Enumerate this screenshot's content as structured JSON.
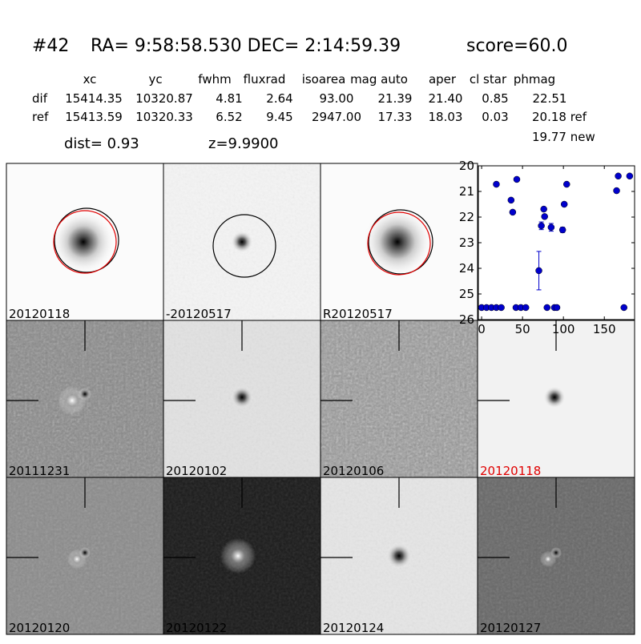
{
  "header": {
    "id": "#42",
    "coords": "RA= 9:58:58.530 DEC= 2:14:59.39",
    "score": "score=60.0"
  },
  "table": {
    "columns": [
      "xc",
      "yc",
      "fwhm",
      "fluxrad",
      "isoarea",
      "mag auto",
      "aper",
      "cl star",
      "phmag"
    ],
    "rows": [
      [
        "dif",
        "15414.35",
        "10320.87",
        "4.81",
        "2.64",
        "93.00",
        "21.39",
        "21.40",
        "0.85",
        "22.51"
      ],
      [
        "ref",
        "15413.59",
        "10320.33",
        "6.52",
        "9.45",
        "2947.00",
        "17.33",
        "18.03",
        "0.03",
        "20.18 ref"
      ]
    ],
    "extra": "19.77 new"
  },
  "dist": "dist=  0.93",
  "z": "z=9.9900",
  "stamps": [
    "20120118",
    "-20120517",
    "R20120517",
    "20111231",
    "20120102",
    "20120106",
    "20120118",
    "20120120",
    "20120122",
    "20120124",
    "20120127"
  ],
  "chart_data": {
    "type": "scatter",
    "color": "#0000cc",
    "x": [
      0,
      6,
      12,
      18,
      24,
      18,
      36,
      38,
      43,
      42,
      48,
      54,
      70,
      73,
      76,
      77,
      85,
      80,
      89,
      92,
      99,
      101,
      104,
      165,
      167,
      174,
      181
    ],
    "values": [
      25.53,
      25.53,
      25.53,
      25.53,
      25.53,
      20.72,
      21.34,
      21.81,
      20.53,
      25.53,
      25.53,
      25.53,
      24.09,
      22.34,
      21.69,
      21.98,
      22.4,
      25.53,
      25.53,
      25.53,
      22.5,
      21.5,
      20.72,
      20.97,
      20.4,
      25.53,
      20.4
    ],
    "errors": [
      null,
      null,
      null,
      null,
      null,
      null,
      null,
      null,
      null,
      null,
      null,
      null,
      0.75,
      0.15,
      null,
      null,
      0.15,
      null,
      null,
      null,
      0.1,
      null,
      null,
      null,
      null,
      null,
      null
    ],
    "xlim": [
      -4,
      187
    ],
    "ylim": [
      26,
      20
    ],
    "xticks": [
      0,
      50,
      100,
      150
    ],
    "yticks": [
      20,
      21,
      22,
      23,
      24,
      25,
      26
    ]
  }
}
